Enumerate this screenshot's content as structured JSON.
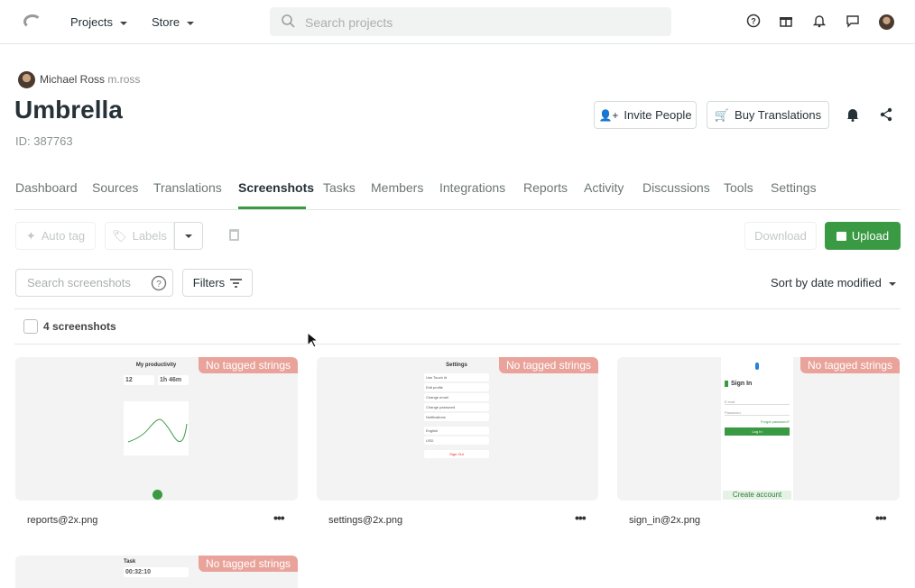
{
  "header": {
    "nav": [
      {
        "label": "Projects"
      },
      {
        "label": "Store"
      }
    ],
    "search_placeholder": "Search projects",
    "icons": [
      "help-icon",
      "gift-icon",
      "bell-icon",
      "chat-icon",
      "avatar"
    ]
  },
  "project": {
    "owner_name": "Michael Ross",
    "owner_username": "m.ross",
    "title": "Umbrella",
    "id": "ID: 387763",
    "invite_label": "Invite People",
    "buy_label": "Buy Translations"
  },
  "tabs": [
    {
      "label": "Dashboard"
    },
    {
      "label": "Sources"
    },
    {
      "label": "Translations"
    },
    {
      "label": "Screenshots",
      "active": true
    },
    {
      "label": "Tasks"
    },
    {
      "label": "Members"
    },
    {
      "label": "Integrations"
    },
    {
      "label": "Reports"
    },
    {
      "label": "Activity"
    },
    {
      "label": "Discussions"
    },
    {
      "label": "Tools"
    },
    {
      "label": "Settings"
    }
  ],
  "toolbar": {
    "auto_tag": "Auto tag",
    "labels": "Labels",
    "download": "Download",
    "upload": "Upload",
    "search_placeholder": "Search screenshots",
    "filters": "Filters",
    "sort": "Sort by date modified",
    "count": "4 screenshots"
  },
  "colors": {
    "accent": "#3a9a44",
    "badge": "#e9a39b"
  },
  "screenshots": [
    {
      "filename": "reports@2x.png",
      "badge": "No tagged strings",
      "preview_title": "My productivity",
      "preview_values": [
        "12",
        "1h 46m"
      ]
    },
    {
      "filename": "settings@2x.png",
      "badge": "No tagged strings",
      "preview_title": "Settings",
      "preview_items": [
        "Use Touch Id",
        "Edit profile",
        "Change email",
        "Change password",
        "Notifications",
        "English",
        "USD",
        "Sign Out"
      ]
    },
    {
      "filename": "sign_in@2x.png",
      "badge": "No tagged strings",
      "preview_title": "Sign In",
      "preview_items": [
        "E-mail",
        "Password",
        "Forgot password?",
        "Log In",
        "Create account"
      ]
    },
    {
      "filename": "",
      "badge": "No tagged strings",
      "preview_title": "Task",
      "preview_values": [
        "00:32:10"
      ]
    }
  ]
}
